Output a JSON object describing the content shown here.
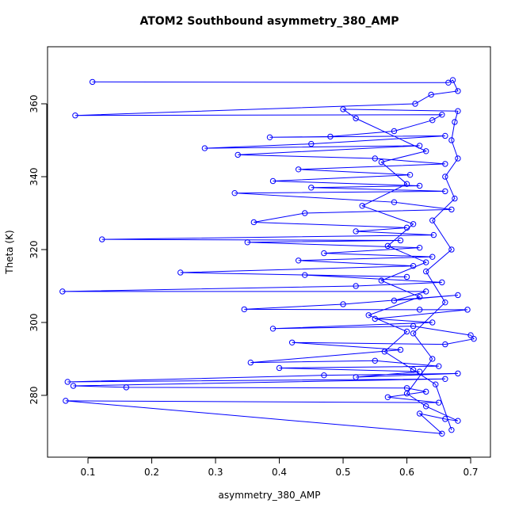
{
  "chart_data": {
    "type": "line",
    "title": "ATOM2 Southbound asymmetry_380_AMP",
    "x_label": "asymmetry_380_AMP",
    "y_label": "Theta (K)",
    "color": "#0000ff",
    "markers": true,
    "xlim": [
      0.0366,
      0.731
    ],
    "ylim": [
      263.04,
      375.65
    ],
    "xticks": [
      0.1,
      0.2,
      0.3,
      0.4,
      0.5,
      0.6,
      0.7
    ],
    "yticks": [
      280,
      300,
      320,
      340,
      360
    ],
    "x": [
      0.107,
      0.665,
      0.672,
      0.68,
      0.638,
      0.613,
      0.08,
      0.655,
      0.64,
      0.58,
      0.48,
      0.385,
      0.66,
      0.45,
      0.283,
      0.62,
      0.335,
      0.55,
      0.66,
      0.43,
      0.605,
      0.39,
      0.62,
      0.45,
      0.66,
      0.33,
      0.58,
      0.67,
      0.44,
      0.36,
      0.6,
      0.52,
      0.642,
      0.122,
      0.59,
      0.35,
      0.62,
      0.47,
      0.64,
      0.43,
      0.61,
      0.245,
      0.6,
      0.44,
      0.655,
      0.52,
      0.06,
      0.63,
      0.58,
      0.68,
      0.5,
      0.345,
      0.62,
      0.695,
      0.55,
      0.64,
      0.39,
      0.61,
      0.7,
      0.705,
      0.66,
      0.42,
      0.59,
      0.355,
      0.55,
      0.65,
      0.4,
      0.62,
      0.52,
      0.68,
      0.47,
      0.068,
      0.66,
      0.077,
      0.16,
      0.6,
      0.63,
      0.57,
      0.65,
      0.065,
      0.655,
      0.62,
      0.66,
      0.68,
      0.63,
      0.6,
      0.64,
      0.61,
      0.66,
      0.63,
      0.67,
      0.64,
      0.675,
      0.66,
      0.68,
      0.67,
      0.675,
      0.68,
      0.5,
      0.52,
      0.63,
      0.56,
      0.6,
      0.53,
      0.61,
      0.57,
      0.63,
      0.56,
      0.62,
      0.54,
      0.6,
      0.565,
      0.61,
      0.645,
      0.67
    ],
    "values": [
      366.0,
      365.8,
      366.5,
      363.5,
      362.5,
      360.0,
      356.8,
      357.0,
      355.5,
      352.5,
      351.0,
      350.8,
      351.2,
      349.0,
      347.8,
      348.5,
      346.0,
      345.0,
      343.5,
      342.0,
      340.5,
      338.8,
      337.5,
      337.0,
      336.0,
      335.5,
      333.0,
      331.0,
      330.0,
      327.5,
      326.0,
      325.0,
      324.0,
      322.8,
      322.5,
      322.0,
      320.5,
      319.0,
      318.0,
      317.0,
      315.5,
      313.7,
      312.5,
      313.0,
      311.0,
      310.0,
      308.5,
      308.5,
      306.0,
      307.5,
      305.0,
      303.6,
      303.5,
      303.5,
      301.0,
      300.0,
      298.3,
      299.0,
      296.5,
      295.5,
      294.0,
      294.5,
      292.5,
      289.0,
      289.5,
      288.0,
      287.5,
      286.5,
      285.0,
      286.0,
      285.5,
      283.7,
      284.5,
      282.6,
      282.2,
      282.0,
      281.0,
      279.5,
      278.0,
      278.5,
      269.5,
      275.0,
      273.5,
      273.0,
      277.0,
      280.5,
      290.0,
      297.0,
      305.5,
      314.0,
      320.0,
      328.0,
      334.0,
      340.0,
      345.0,
      350.0,
      355.0,
      358.0,
      358.5,
      356.0,
      347.0,
      344.0,
      338.0,
      332.0,
      327.0,
      321.0,
      316.5,
      311.5,
      307.0,
      302.0,
      297.5,
      292.0,
      287.0,
      283.0,
      270.5
    ]
  }
}
